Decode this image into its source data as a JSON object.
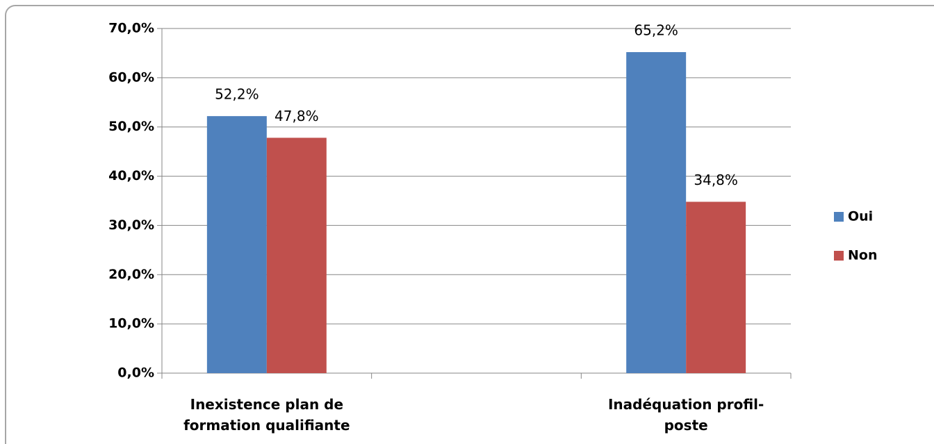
{
  "chart_data": {
    "type": "bar",
    "categories": [
      "Inexistence plan de formation qualifiante",
      null,
      "Inadéquation profil-poste"
    ],
    "series": [
      {
        "name": "Oui",
        "color": "#4f81bd",
        "values": [
          52.2,
          null,
          65.2
        ],
        "value_labels": [
          "52,2%",
          null,
          "65,2%"
        ]
      },
      {
        "name": "Non",
        "color": "#c0504d",
        "values": [
          47.8,
          null,
          34.8
        ],
        "value_labels": [
          "47,8%",
          null,
          "34,8%"
        ]
      }
    ],
    "ylim": [
      0,
      70
    ],
    "yticks": [
      {
        "value": 0,
        "label": "0,0%"
      },
      {
        "value": 10,
        "label": "10,0%"
      },
      {
        "value": 20,
        "label": "20,0%"
      },
      {
        "value": 30,
        "label": "30,0%"
      },
      {
        "value": 40,
        "label": "40,0%"
      },
      {
        "value": 50,
        "label": "50,0%"
      },
      {
        "value": 60,
        "label": "60,0%"
      },
      {
        "value": 70,
        "label": "70,0%"
      }
    ],
    "grid": true,
    "legend": "right"
  }
}
